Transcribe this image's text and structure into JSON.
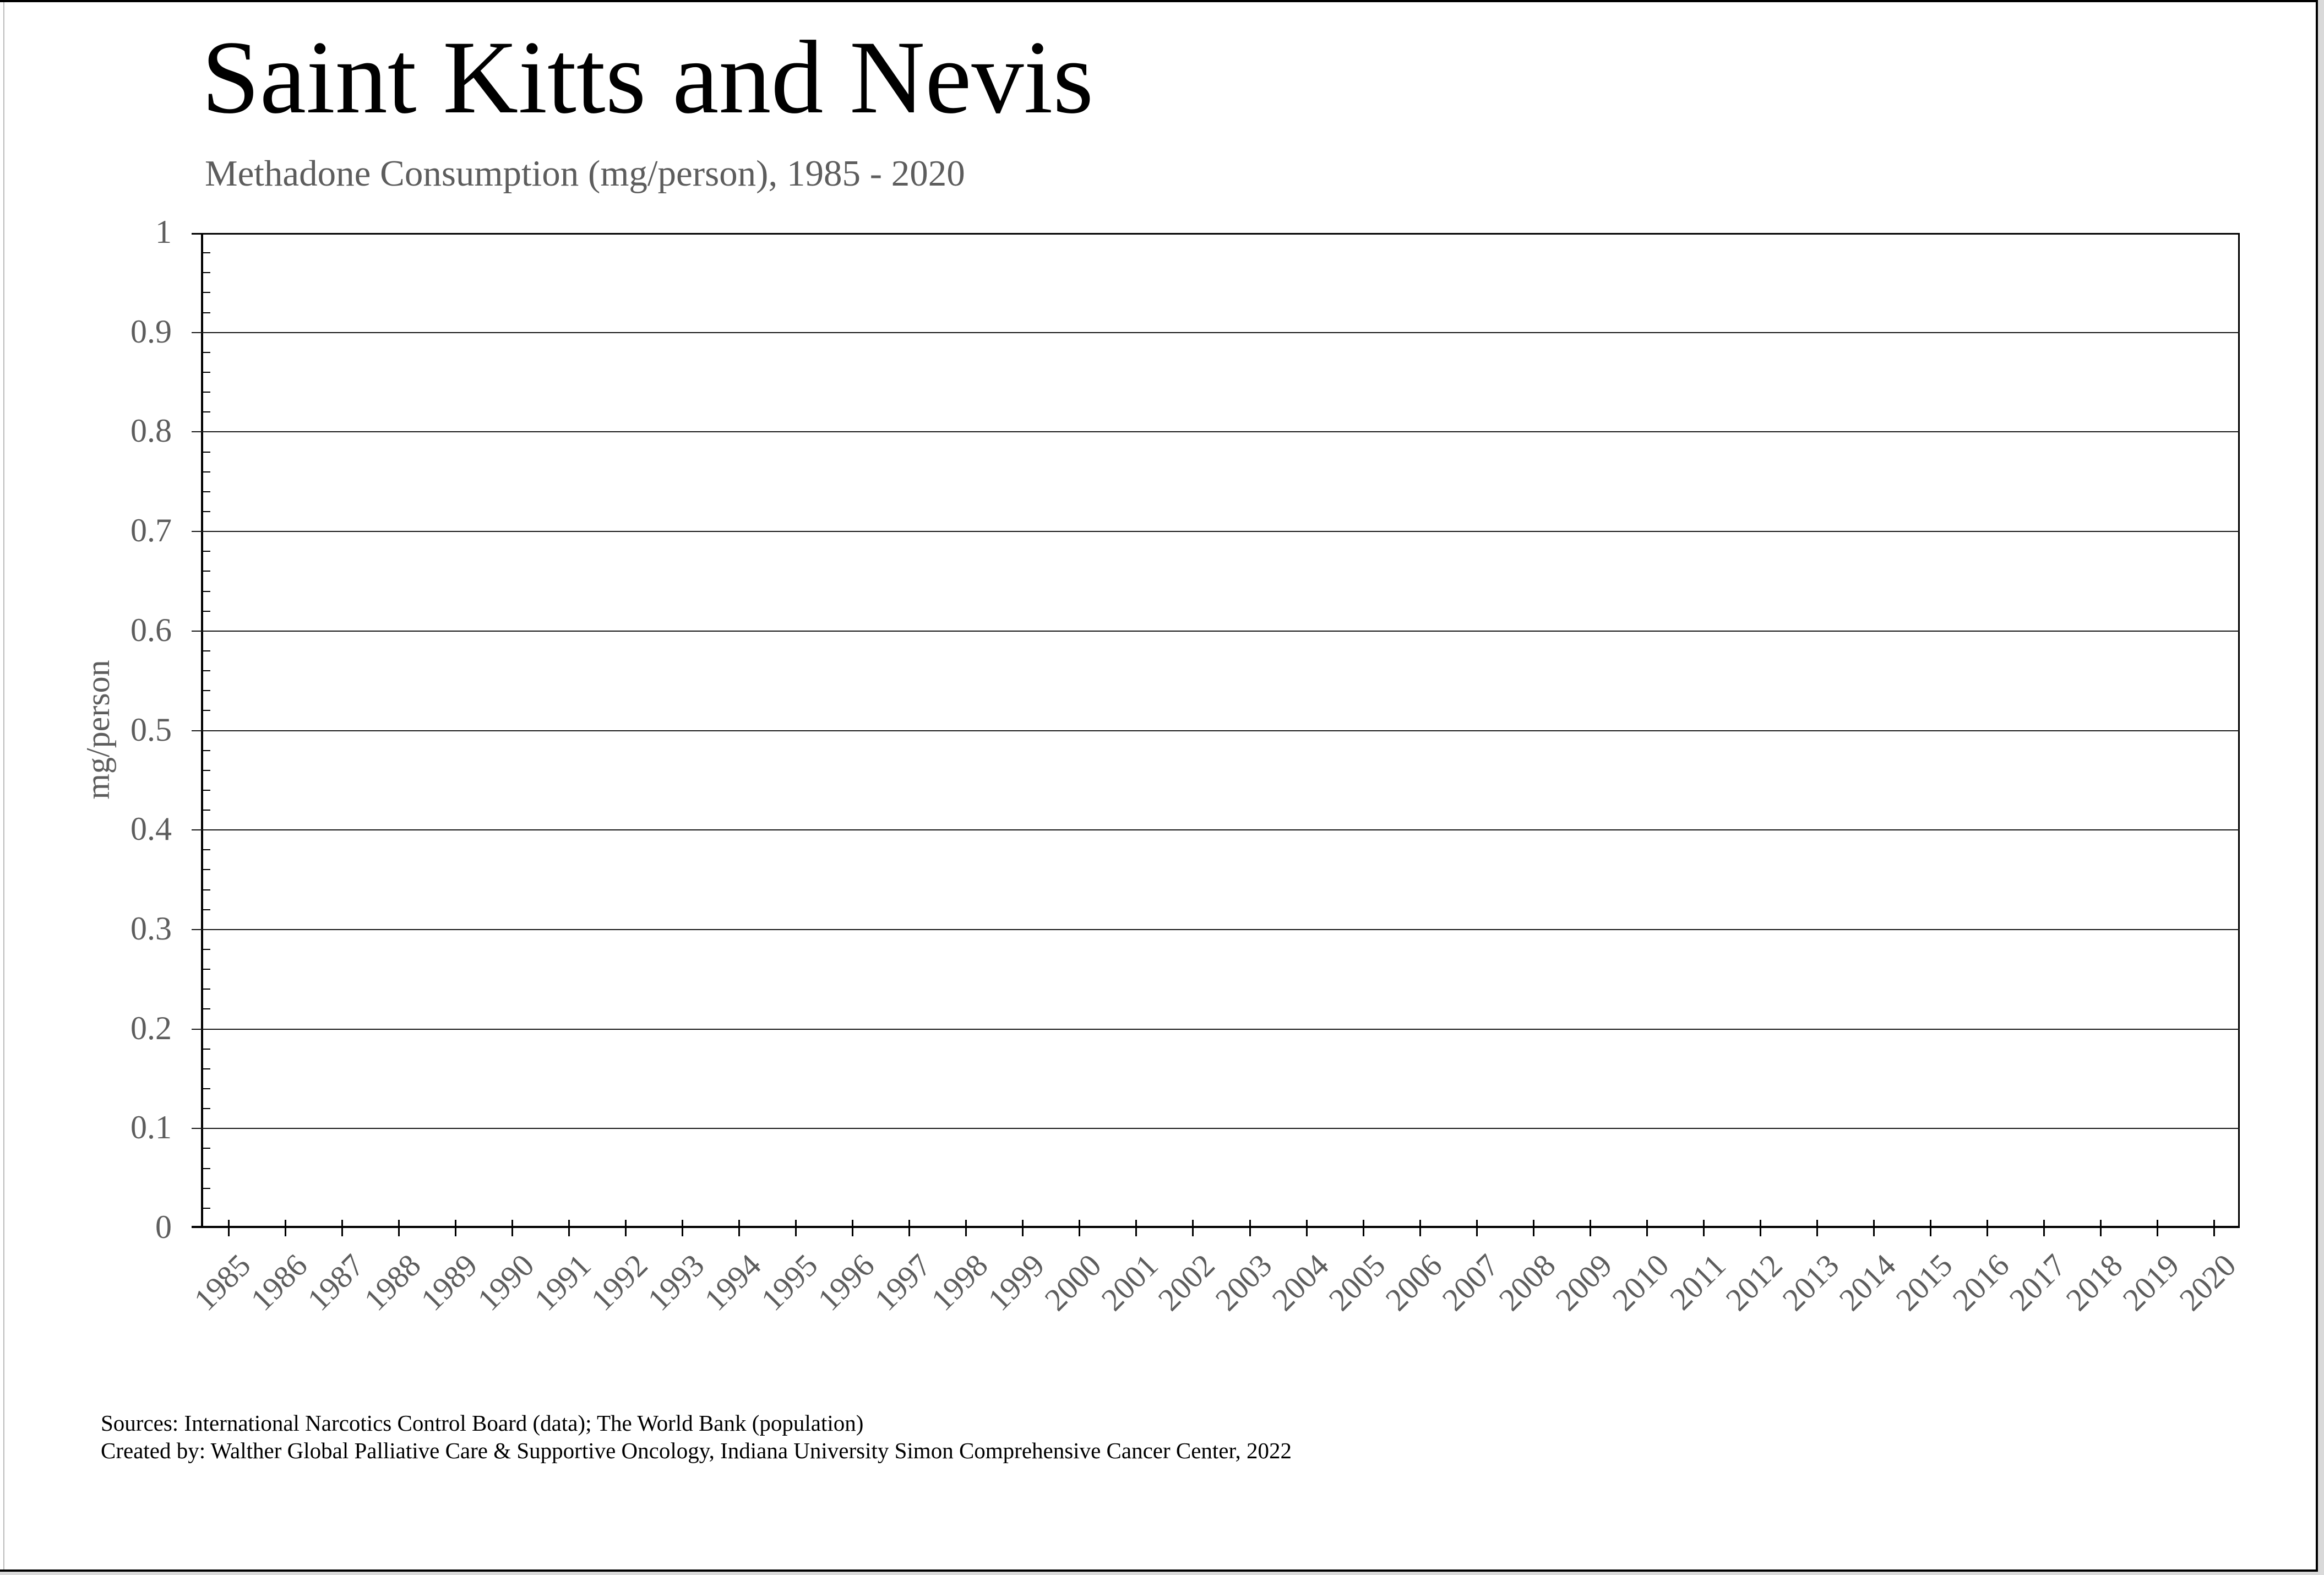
{
  "title": "Saint Kitts and Nevis",
  "subtitle": "Methadone Consumption (mg/person), 1985 - 2020",
  "footer": {
    "sources_line": "Sources: International Narcotics Control Board (data); The World Bank (population)",
    "created_line": "Created by: Walther Global Palliative Care & Supportive Oncology, Indiana University Simon Comprehensive Cancer Center, 2022"
  },
  "chart_data": {
    "type": "line",
    "title": "Saint Kitts and Nevis",
    "subtitle": "Methadone Consumption (mg/person), 1985 - 2020",
    "xlabel": "",
    "ylabel": "mg/person",
    "ylim": [
      0,
      1
    ],
    "ytick_step": 0.1,
    "ytick_labels": [
      "0",
      "0.1",
      "0.2",
      "0.3",
      "0.4",
      "0.5",
      "0.6",
      "0.7",
      "0.8",
      "0.9",
      "1"
    ],
    "y_minor_tick_step": 0.02,
    "categories": [
      "1985",
      "1986",
      "1987",
      "1988",
      "1989",
      "1990",
      "1991",
      "1992",
      "1993",
      "1994",
      "1995",
      "1996",
      "1997",
      "1998",
      "1999",
      "2000",
      "2001",
      "2002",
      "2003",
      "2004",
      "2005",
      "2006",
      "2007",
      "2008",
      "2009",
      "2010",
      "2011",
      "2012",
      "2013",
      "2014",
      "2015",
      "2016",
      "2017",
      "2018",
      "2019",
      "2020"
    ],
    "series": [],
    "note": "plot area is empty; no data line or markers are drawn",
    "grid": "horizontal major gridlines only",
    "legend": "none",
    "x_tick_label_rotation_deg": -45,
    "colors": {
      "title": "#000000",
      "subtitle": "#5d5d5d",
      "axis": "#000000",
      "gridline": "#161616",
      "tick_label": "#5d5d5d",
      "background": "#ffffff"
    }
  }
}
